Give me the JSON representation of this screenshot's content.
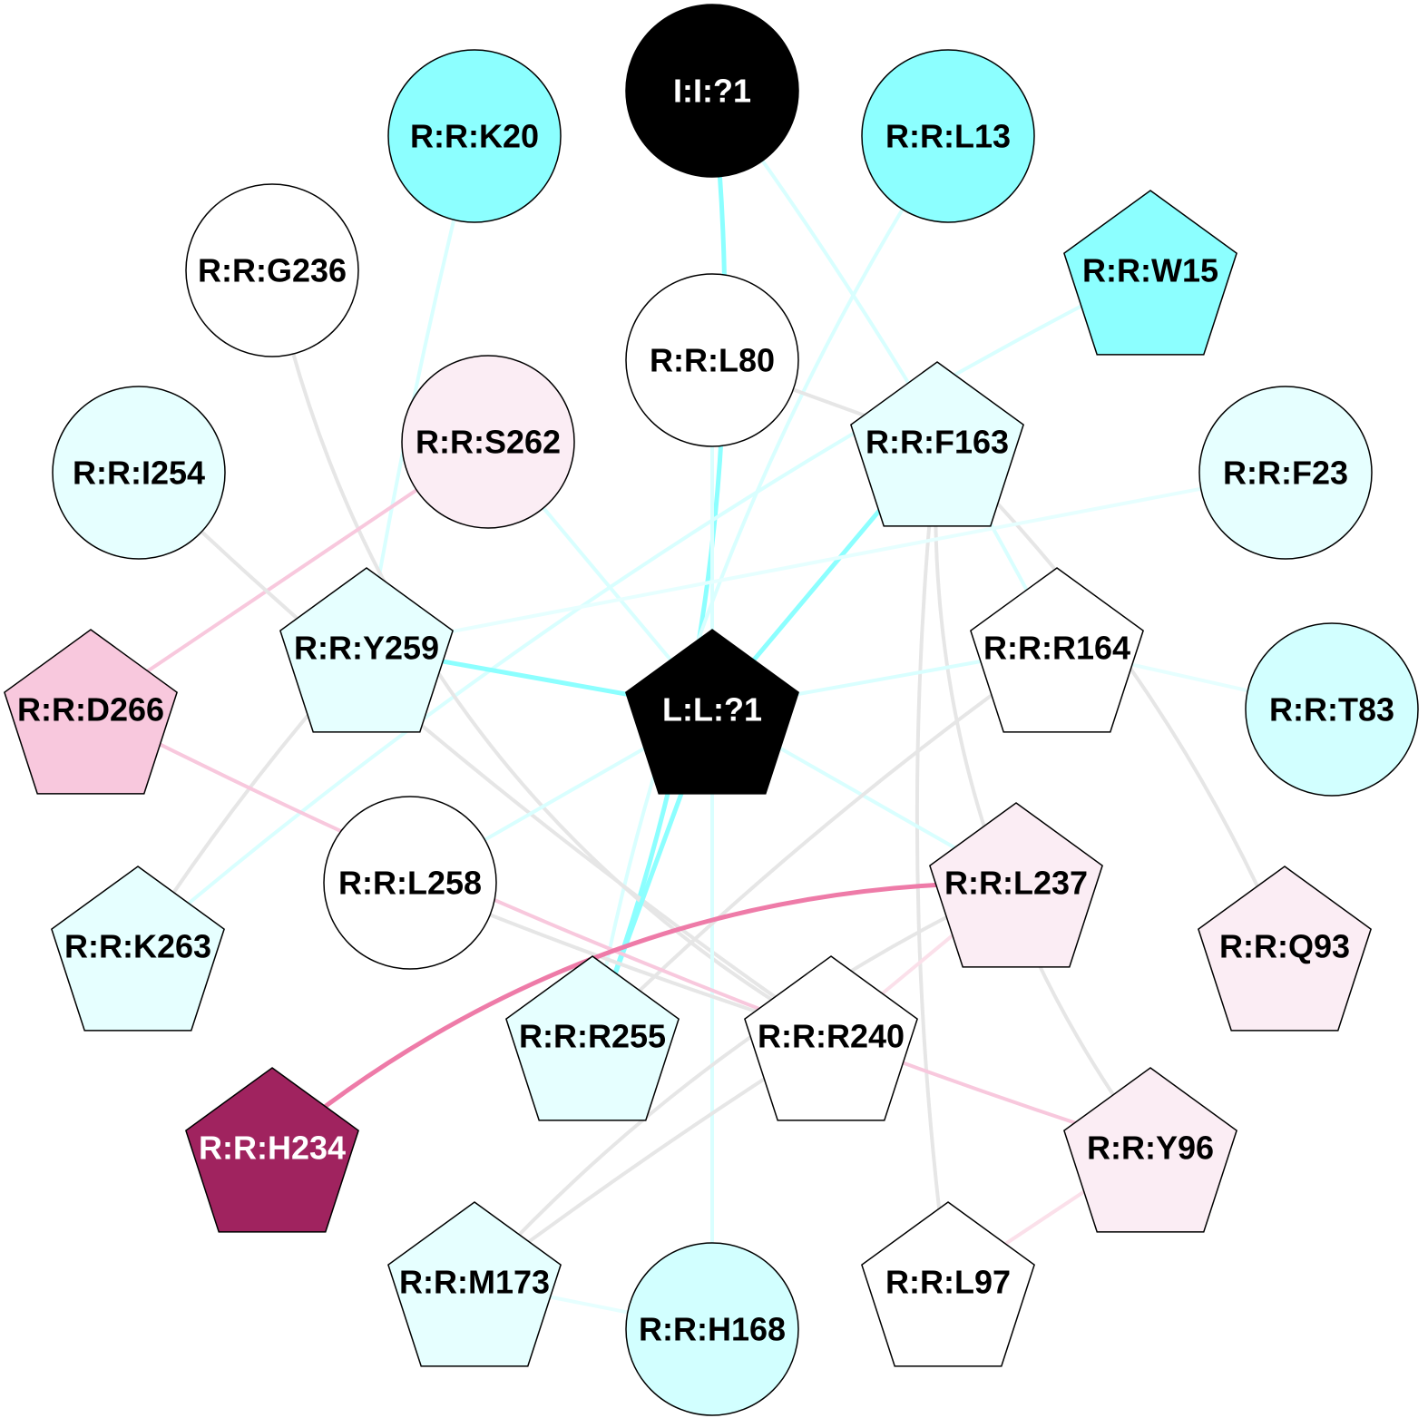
{
  "colors": {
    "center": "#000000",
    "cyan_strong": "#8cffff",
    "cyan_light": "#e6ffff",
    "cyan_mid": "#d2ffff",
    "pink_light": "#fbedf4",
    "pink_mid": "#f8c8dd",
    "magenta_dark": "#a0235f",
    "white": "#ffffff",
    "edge_grey": "#e6e6e6",
    "edge_cyan_strong": "#8cffff",
    "edge_cyan_light": "#d9ffff",
    "edge_pink_light": "#fbe0ea",
    "edge_pink_mid": "#f8c8dd",
    "edge_magenta": "#ee7ba8"
  },
  "nodes": [
    {
      "id": "I:I:?1",
      "label": "I:I:?1",
      "shape": "circle",
      "fill": "#000000",
      "text_color": "#ffffff"
    },
    {
      "id": "R:R:K20",
      "label": "R:R:K20",
      "shape": "circle",
      "fill": "#8cffff",
      "text_color": "#000000"
    },
    {
      "id": "R:R:L13",
      "label": "R:R:L13",
      "shape": "circle",
      "fill": "#8cffff",
      "text_color": "#000000"
    },
    {
      "id": "R:R:G236",
      "label": "R:R:G236",
      "shape": "circle",
      "fill": "#ffffff",
      "text_color": "#000000"
    },
    {
      "id": "R:R:W15",
      "label": "R:R:W15",
      "shape": "pentagon",
      "fill": "#8cffff",
      "text_color": "#000000"
    },
    {
      "id": "R:R:L80",
      "label": "R:R:L80",
      "shape": "circle",
      "fill": "#ffffff",
      "text_color": "#000000"
    },
    {
      "id": "R:R:S262",
      "label": "R:R:S262",
      "shape": "circle",
      "fill": "#fbedf4",
      "text_color": "#000000"
    },
    {
      "id": "R:R:F163",
      "label": "R:R:F163",
      "shape": "pentagon",
      "fill": "#e6ffff",
      "text_color": "#000000"
    },
    {
      "id": "R:R:I254",
      "label": "R:R:I254",
      "shape": "circle",
      "fill": "#e6ffff",
      "text_color": "#000000"
    },
    {
      "id": "R:R:F23",
      "label": "R:R:F23",
      "shape": "circle",
      "fill": "#e6ffff",
      "text_color": "#000000"
    },
    {
      "id": "R:R:Y259",
      "label": "R:R:Y259",
      "shape": "pentagon",
      "fill": "#e6ffff",
      "text_color": "#000000"
    },
    {
      "id": "R:R:R164",
      "label": "R:R:R164",
      "shape": "pentagon",
      "fill": "#ffffff",
      "text_color": "#000000"
    },
    {
      "id": "L:L:?1",
      "label": "L:L:?1",
      "shape": "pentagon",
      "fill": "#000000",
      "text_color": "#ffffff"
    },
    {
      "id": "R:R:D266",
      "label": "R:R:D266",
      "shape": "pentagon",
      "fill": "#f8c8dd",
      "text_color": "#000000"
    },
    {
      "id": "R:R:T83",
      "label": "R:R:T83",
      "shape": "circle",
      "fill": "#d2ffff",
      "text_color": "#000000"
    },
    {
      "id": "R:R:L258",
      "label": "R:R:L258",
      "shape": "circle",
      "fill": "#ffffff",
      "text_color": "#000000"
    },
    {
      "id": "R:R:L237",
      "label": "R:R:L237",
      "shape": "pentagon",
      "fill": "#fbedf4",
      "text_color": "#000000"
    },
    {
      "id": "R:R:K263",
      "label": "R:R:K263",
      "shape": "pentagon",
      "fill": "#e6ffff",
      "text_color": "#000000"
    },
    {
      "id": "R:R:Q93",
      "label": "R:R:Q93",
      "shape": "pentagon",
      "fill": "#fbedf4",
      "text_color": "#000000"
    },
    {
      "id": "R:R:R255",
      "label": "R:R:R255",
      "shape": "pentagon",
      "fill": "#e6ffff",
      "text_color": "#000000"
    },
    {
      "id": "R:R:R240",
      "label": "R:R:R240",
      "shape": "pentagon",
      "fill": "#ffffff",
      "text_color": "#000000"
    },
    {
      "id": "R:R:H234",
      "label": "R:R:H234",
      "shape": "pentagon",
      "fill": "#a0235f",
      "text_color": "#ffffff"
    },
    {
      "id": "R:R:Y96",
      "label": "R:R:Y96",
      "shape": "pentagon",
      "fill": "#fbedf4",
      "text_color": "#000000"
    },
    {
      "id": "R:R:M173",
      "label": "R:R:M173",
      "shape": "pentagon",
      "fill": "#e6ffff",
      "text_color": "#000000"
    },
    {
      "id": "R:R:H168",
      "label": "R:R:H168",
      "shape": "circle",
      "fill": "#d2ffff",
      "text_color": "#000000"
    },
    {
      "id": "R:R:L97",
      "label": "R:R:L97",
      "shape": "pentagon",
      "fill": "#ffffff",
      "text_color": "#000000"
    }
  ],
  "edges": [
    {
      "source": "I:I:?1",
      "target": "R:R:R255",
      "color": "#8cffff",
      "weight": 5
    },
    {
      "source": "I:I:?1",
      "target": "R:R:R164",
      "color": "#d9ffff",
      "weight": 4
    },
    {
      "source": "R:R:K20",
      "target": "R:R:Y259",
      "color": "#d9ffff",
      "weight": 4
    },
    {
      "source": "R:R:L13",
      "target": "R:R:R255",
      "color": "#d9ffff",
      "weight": 4
    },
    {
      "source": "R:R:W15",
      "target": "R:R:K263",
      "color": "#d9ffff",
      "weight": 4
    },
    {
      "source": "R:R:G236",
      "target": "R:R:R240",
      "color": "#e6e6e6",
      "weight": 4
    },
    {
      "source": "R:R:L80",
      "target": "L:L:?1",
      "color": "#d9ffff",
      "weight": 4
    },
    {
      "source": "R:R:L80",
      "target": "R:R:F163",
      "color": "#e6e6e6",
      "weight": 4
    },
    {
      "source": "R:R:S262",
      "target": "R:R:D266",
      "color": "#f8c8dd",
      "weight": 4
    },
    {
      "source": "R:R:S262",
      "target": "L:L:?1",
      "color": "#d9ffff",
      "weight": 4
    },
    {
      "source": "R:R:F163",
      "target": "L:L:?1",
      "color": "#8cffff",
      "weight": 5
    },
    {
      "source": "R:R:F163",
      "target": "R:R:Q93",
      "color": "#e6e6e6",
      "weight": 4
    },
    {
      "source": "R:R:F163",
      "target": "R:R:L97",
      "color": "#e6e6e6",
      "weight": 4
    },
    {
      "source": "R:R:F163",
      "target": "R:R:Y96",
      "color": "#e6e6e6",
      "weight": 4
    },
    {
      "source": "R:R:I254",
      "target": "R:R:R240",
      "color": "#e6e6e6",
      "weight": 4
    },
    {
      "source": "R:R:F23",
      "target": "R:R:Y259",
      "color": "#e6ffff",
      "weight": 4
    },
    {
      "source": "R:R:Y259",
      "target": "L:L:?1",
      "color": "#8cffff",
      "weight": 5
    },
    {
      "source": "R:R:Y259",
      "target": "R:R:K263",
      "color": "#e6e6e6",
      "weight": 4
    },
    {
      "source": "L:L:?1",
      "target": "R:R:R164",
      "color": "#d9ffff",
      "weight": 4
    },
    {
      "source": "L:L:?1",
      "target": "R:R:R255",
      "color": "#8cffff",
      "weight": 5
    },
    {
      "source": "L:L:?1",
      "target": "R:R:L237",
      "color": "#d9ffff",
      "weight": 4
    },
    {
      "source": "L:L:?1",
      "target": "R:R:L258",
      "color": "#d9ffff",
      "weight": 4
    },
    {
      "source": "L:L:?1",
      "target": "R:R:H168",
      "color": "#d9ffff",
      "weight": 4
    },
    {
      "source": "R:R:R164",
      "target": "R:R:T83",
      "color": "#e6ffff",
      "weight": 4
    },
    {
      "source": "R:R:R164",
      "target": "R:R:R255",
      "color": "#e6e6e6",
      "weight": 4
    },
    {
      "source": "R:R:D266",
      "target": "R:R:Y96",
      "color": "#f8c8dd",
      "weight": 4
    },
    {
      "source": "R:R:L258",
      "target": "R:R:R240",
      "color": "#e6e6e6",
      "weight": 4
    },
    {
      "source": "R:R:L237",
      "target": "R:R:H234",
      "color": "#ee7ba8",
      "weight": 5
    },
    {
      "source": "R:R:L237",
      "target": "R:R:M173",
      "color": "#e6e6e6",
      "weight": 4
    },
    {
      "source": "R:R:L237",
      "target": "R:R:R240",
      "color": "#fbe0ea",
      "weight": 4
    },
    {
      "source": "R:R:R240",
      "target": "R:R:M173",
      "color": "#e6e6e6",
      "weight": 4
    },
    {
      "source": "R:R:M173",
      "target": "R:R:H168",
      "color": "#e6ffff",
      "weight": 4
    },
    {
      "source": "R:R:Y96",
      "target": "R:R:L97",
      "color": "#fbe0ea",
      "weight": 4
    }
  ]
}
